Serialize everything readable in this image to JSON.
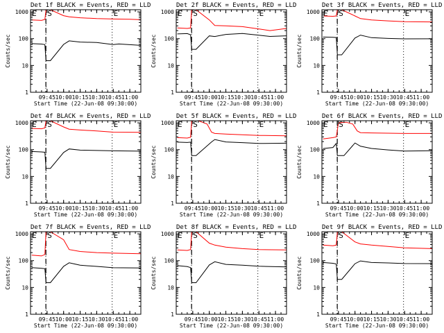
{
  "colors": {
    "events": "#000000",
    "lld": "#ff0000",
    "axes": "#000000",
    "background": "#ffffff"
  },
  "chart_data": [
    {
      "type": "line",
      "title": "Det 1f BLACK = Events, RED = LLD",
      "xlabel": "Start Time (22-Jun-08 09:30:00)",
      "ylabel": "Counts/sec",
      "x_tick_labels": [
        "09:45",
        "10:00",
        "10:15",
        "10:30",
        "10:45",
        "11:00"
      ],
      "y_tick_labels": [
        "1",
        "10",
        "100",
        "1000"
      ],
      "yscale": "log",
      "ylim": [
        1,
        1200
      ],
      "xlim": [
        "09:30",
        "11:10"
      ],
      "markers": [
        {
          "label": "E",
          "time": "09:30"
        },
        {
          "label": "S",
          "time": "09:44"
        },
        {
          "label": "E",
          "time": "10:44"
        }
      ],
      "series": [
        {
          "color": "#000000",
          "x": [
            "09:31",
            "09:40",
            "09:43",
            "09:44",
            "09:48",
            "10:00",
            "10:05",
            "10:15",
            "10:30",
            "10:45",
            "10:50",
            "11:00",
            "11:10"
          ],
          "y": [
            65,
            63,
            60,
            15,
            15,
            60,
            80,
            72,
            70,
            60,
            65,
            62,
            58
          ]
        },
        {
          "color": "#ff0000",
          "x": [
            "09:31",
            "09:40",
            "09:43",
            "09:44",
            "09:48",
            "10:00",
            "10:05",
            "10:15",
            "10:30",
            "10:45",
            "11:00",
            "11:10"
          ],
          "y": [
            500,
            480,
            520,
            1200,
            1200,
            720,
            650,
            600,
            560,
            540,
            530,
            510
          ]
        }
      ]
    },
    {
      "type": "line",
      "title": "Det 2f BLACK = Events, RED = LLD",
      "xlabel": "Start Time (22-Jun-08 09:30:00)",
      "ylabel": "Counts/sec",
      "x_tick_labels": [
        "09:45",
        "10:00",
        "10:15",
        "10:30",
        "10:45",
        "11:00"
      ],
      "y_tick_labels": [
        "1",
        "10",
        "100",
        "1000"
      ],
      "yscale": "log",
      "ylim": [
        1,
        1200
      ],
      "xlim": [
        "09:30",
        "11:10"
      ],
      "markers": [
        {
          "label": "E",
          "time": "09:30"
        },
        {
          "label": "S",
          "time": "09:44"
        },
        {
          "label": "E",
          "time": "10:44"
        }
      ],
      "series": [
        {
          "color": "#000000",
          "x": [
            "09:31",
            "09:40",
            "09:43",
            "09:44",
            "09:48",
            "10:00",
            "10:05",
            "10:15",
            "10:30",
            "10:45",
            "10:55",
            "11:10"
          ],
          "y": [
            150,
            155,
            140,
            40,
            40,
            130,
            120,
            140,
            150,
            130,
            120,
            130
          ]
        },
        {
          "color": "#ff0000",
          "x": [
            "09:31",
            "09:40",
            "09:43",
            "09:44",
            "09:48",
            "10:00",
            "10:05",
            "10:15",
            "10:30",
            "10:45",
            "10:55",
            "11:10"
          ],
          "y": [
            250,
            240,
            250,
            1200,
            1200,
            500,
            310,
            300,
            280,
            230,
            200,
            240
          ]
        }
      ]
    },
    {
      "type": "line",
      "title": "Det 3f BLACK = Events, RED = LLD",
      "xlabel": "Start Time (22-Jun-08 09:30:00)",
      "ylabel": "Counts/sec",
      "x_tick_labels": [
        "09:45",
        "10:00",
        "10:15",
        "10:30",
        "10:45",
        "11:00"
      ],
      "y_tick_labels": [
        "1",
        "10",
        "100",
        "1000"
      ],
      "yscale": "log",
      "ylim": [
        1,
        1200
      ],
      "xlim": [
        "09:30",
        "11:10"
      ],
      "markers": [
        {
          "label": "E",
          "time": "09:30"
        },
        {
          "label": "S",
          "time": "09:44"
        },
        {
          "label": "E",
          "time": "10:44"
        }
      ],
      "series": [
        {
          "color": "#000000",
          "x": [
            "09:31",
            "09:40",
            "09:43",
            "09:44",
            "09:48",
            "10:00",
            "10:05",
            "10:15",
            "10:30",
            "10:45",
            "11:10"
          ],
          "y": [
            115,
            112,
            110,
            25,
            25,
            110,
            140,
            110,
            100,
            95,
            95
          ]
        },
        {
          "color": "#ff0000",
          "x": [
            "09:31",
            "09:40",
            "09:43",
            "09:44",
            "09:48",
            "10:00",
            "10:05",
            "10:15",
            "10:30",
            "10:45",
            "11:10"
          ],
          "y": [
            700,
            680,
            700,
            1200,
            1200,
            700,
            560,
            500,
            460,
            430,
            420
          ]
        }
      ]
    },
    {
      "type": "line",
      "title": "Det 4f BLACK = Events, RED = LLD",
      "xlabel": "Start Time (22-Jun-08 09:30:00)",
      "ylabel": "Counts/sec",
      "x_tick_labels": [
        "09:45",
        "10:00",
        "10:15",
        "10:30",
        "10:45",
        "11:00"
      ],
      "y_tick_labels": [
        "1",
        "10",
        "100",
        "1000"
      ],
      "yscale": "log",
      "ylim": [
        1,
        1200
      ],
      "xlim": [
        "09:30",
        "11:10"
      ],
      "markers": [
        {
          "label": "E",
          "time": "09:30"
        },
        {
          "label": "S",
          "time": "09:44"
        },
        {
          "label": "E",
          "time": "10:44"
        }
      ],
      "series": [
        {
          "color": "#000000",
          "x": [
            "09:31",
            "09:40",
            "09:43",
            "09:44",
            "09:48",
            "10:00",
            "10:05",
            "10:15",
            "10:30",
            "10:45",
            "11:10"
          ],
          "y": [
            85,
            82,
            80,
            20,
            20,
            80,
            110,
            100,
            95,
            90,
            85
          ]
        },
        {
          "color": "#ff0000",
          "x": [
            "09:31",
            "09:40",
            "09:43",
            "09:44",
            "09:48",
            "10:00",
            "10:05",
            "10:15",
            "10:30",
            "10:45",
            "11:10"
          ],
          "y": [
            620,
            600,
            650,
            1200,
            1200,
            700,
            580,
            540,
            500,
            450,
            440
          ]
        }
      ]
    },
    {
      "type": "line",
      "title": "Det 5f BLACK = Events, RED = LLD",
      "xlabel": "Start Time (22-Jun-08 09:30:00)",
      "ylabel": "Counts/sec",
      "x_tick_labels": [
        "09:45",
        "10:00",
        "10:15",
        "10:30",
        "10:45",
        "11:00"
      ],
      "y_tick_labels": [
        "1",
        "10",
        "100",
        "1000"
      ],
      "yscale": "log",
      "ylim": [
        1,
        1200
      ],
      "xlim": [
        "09:30",
        "11:10"
      ],
      "markers": [
        {
          "label": "E",
          "time": "09:30"
        },
        {
          "label": "S",
          "time": "09:44"
        },
        {
          "label": "E",
          "time": "10:44"
        }
      ],
      "series": [
        {
          "color": "#000000",
          "x": [
            "09:31",
            "09:40",
            "09:43",
            "09:44",
            "09:48",
            "10:02",
            "10:05",
            "10:15",
            "10:30",
            "10:45",
            "11:10"
          ],
          "y": [
            190,
            185,
            190,
            60,
            60,
            190,
            240,
            200,
            190,
            175,
            175
          ]
        },
        {
          "color": "#ff0000",
          "x": [
            "09:31",
            "09:40",
            "09:43",
            "09:44",
            "09:50",
            "09:58",
            "10:02",
            "10:05",
            "10:15",
            "10:30",
            "10:45",
            "11:10"
          ],
          "y": [
            280,
            270,
            290,
            1200,
            1200,
            900,
            450,
            400,
            380,
            360,
            340,
            330
          ]
        }
      ]
    },
    {
      "type": "line",
      "title": "Det 6f BLACK = Events, RED = LLD",
      "xlabel": "Start Time (22-Jun-08 09:30:00)",
      "ylabel": "Counts/sec",
      "x_tick_labels": [
        "09:45",
        "10:00",
        "10:15",
        "10:30",
        "10:45",
        "11:00"
      ],
      "y_tick_labels": [
        "1",
        "10",
        "100",
        "1000"
      ],
      "yscale": "log",
      "ylim": [
        1,
        1200
      ],
      "xlim": [
        "09:30",
        "11:10"
      ],
      "markers": [
        {
          "label": "E",
          "time": "09:30"
        },
        {
          "label": "S",
          "time": "09:44"
        },
        {
          "label": "E",
          "time": "10:44"
        }
      ],
      "series": [
        {
          "color": "#000000",
          "x": [
            "09:31",
            "09:40",
            "09:43",
            "09:44",
            "09:50",
            "10:00",
            "10:05",
            "10:15",
            "10:30",
            "10:45",
            "11:10"
          ],
          "y": [
            110,
            120,
            170,
            60,
            60,
            170,
            130,
            110,
            100,
            92,
            95
          ]
        },
        {
          "color": "#ff0000",
          "x": [
            "09:31",
            "09:40",
            "09:43",
            "09:45",
            "09:52",
            "09:58",
            "10:02",
            "10:05",
            "10:15",
            "10:30",
            "10:45",
            "11:10"
          ],
          "y": [
            250,
            280,
            300,
            1000,
            1050,
            900,
            500,
            430,
            420,
            410,
            400,
            400
          ]
        }
      ]
    },
    {
      "type": "line",
      "title": "Det 7f BLACK = Events, RED = LLD",
      "xlabel": "Start Time (22-Jun-08 09:30:00)",
      "ylabel": "Counts/sec",
      "x_tick_labels": [
        "09:45",
        "10:00",
        "10:15",
        "10:30",
        "10:45",
        "11:00"
      ],
      "y_tick_labels": [
        "1",
        "10",
        "100",
        "1000"
      ],
      "yscale": "log",
      "ylim": [
        1,
        1200
      ],
      "xlim": [
        "09:30",
        "11:10"
      ],
      "markers": [
        {
          "label": "E",
          "time": "09:30"
        },
        {
          "label": "S",
          "time": "09:44"
        },
        {
          "label": "E",
          "time": "10:44"
        }
      ],
      "series": [
        {
          "color": "#000000",
          "x": [
            "09:31",
            "09:40",
            "09:43",
            "09:44",
            "09:48",
            "10:00",
            "10:05",
            "10:15",
            "10:30",
            "10:45",
            "11:10"
          ],
          "y": [
            55,
            52,
            50,
            15,
            15,
            60,
            80,
            65,
            60,
            55,
            55
          ]
        },
        {
          "color": "#ff0000",
          "x": [
            "09:31",
            "09:40",
            "09:43",
            "09:44",
            "09:48",
            "10:00",
            "10:05",
            "10:15",
            "10:30",
            "10:45",
            "11:10"
          ],
          "y": [
            160,
            150,
            170,
            1200,
            1200,
            600,
            260,
            220,
            200,
            190,
            180
          ]
        }
      ]
    },
    {
      "type": "line",
      "title": "Det 8f BLACK = Events, RED = LLD",
      "xlabel": "Start Time (22-Jun-08 09:30:00)",
      "ylabel": "Counts/sec",
      "x_tick_labels": [
        "09:45",
        "10:00",
        "10:15",
        "10:30",
        "10:45",
        "11:00"
      ],
      "y_tick_labels": [
        "1",
        "10",
        "100",
        "1000"
      ],
      "yscale": "log",
      "ylim": [
        1,
        1200
      ],
      "xlim": [
        "09:30",
        "11:10"
      ],
      "markers": [
        {
          "label": "E",
          "time": "09:30"
        },
        {
          "label": "S",
          "time": "09:44"
        },
        {
          "label": "E",
          "time": "10:44"
        }
      ],
      "series": [
        {
          "color": "#000000",
          "x": [
            "09:31",
            "09:40",
            "09:43",
            "09:44",
            "09:48",
            "10:00",
            "10:05",
            "10:15",
            "10:30",
            "10:45",
            "11:10"
          ],
          "y": [
            65,
            60,
            55,
            15,
            15,
            70,
            90,
            70,
            65,
            60,
            58
          ]
        },
        {
          "color": "#ff0000",
          "x": [
            "09:31",
            "09:40",
            "09:43",
            "09:44",
            "09:48",
            "10:00",
            "10:05",
            "10:15",
            "10:30",
            "10:45",
            "11:10"
          ],
          "y": [
            250,
            240,
            260,
            1200,
            1200,
            450,
            380,
            320,
            280,
            260,
            250
          ]
        }
      ]
    },
    {
      "type": "line",
      "title": "Det 9f BLACK = Events, RED = LLD",
      "xlabel": "Start Time (22-Jun-08 09:30:00)",
      "ylabel": "Counts/sec",
      "x_tick_labels": [
        "09:45",
        "10:00",
        "10:15",
        "10:30",
        "10:45",
        "11:00"
      ],
      "y_tick_labels": [
        "1",
        "10",
        "100",
        "1000"
      ],
      "yscale": "log",
      "ylim": [
        1,
        1200
      ],
      "xlim": [
        "09:30",
        "11:10"
      ],
      "markers": [
        {
          "label": "E",
          "time": "09:30"
        },
        {
          "label": "S",
          "time": "09:44"
        },
        {
          "label": "E",
          "time": "10:44"
        }
      ],
      "series": [
        {
          "color": "#000000",
          "x": [
            "09:31",
            "09:40",
            "09:43",
            "09:44",
            "09:48",
            "10:00",
            "10:05",
            "10:15",
            "10:30",
            "10:45",
            "11:10"
          ],
          "y": [
            85,
            80,
            75,
            20,
            20,
            80,
            100,
            85,
            80,
            75,
            75
          ]
        },
        {
          "color": "#ff0000",
          "x": [
            "09:31",
            "09:40",
            "09:43",
            "09:44",
            "09:48",
            "10:00",
            "10:05",
            "10:15",
            "10:30",
            "10:45",
            "11:10"
          ],
          "y": [
            380,
            360,
            380,
            1200,
            1200,
            500,
            420,
            380,
            340,
            300,
            280
          ]
        }
      ]
    }
  ]
}
